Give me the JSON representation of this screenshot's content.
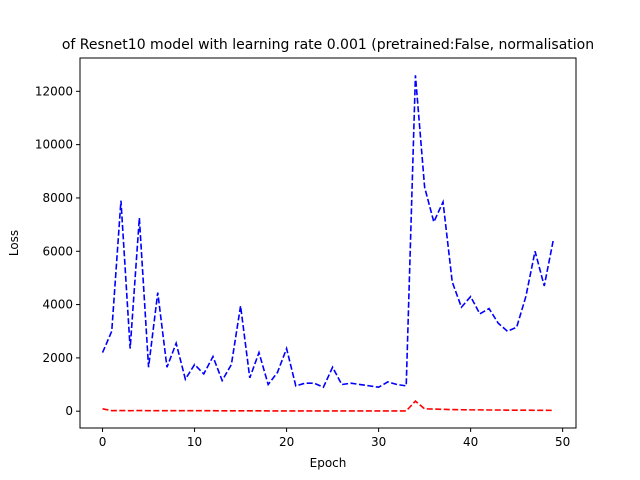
{
  "chart_data": {
    "type": "line",
    "title": "of  Resnet10 model with learning rate 0.001 (pretrained:False, normalisation",
    "xlabel": "Epoch",
    "ylabel": "Loss",
    "xlim": [
      -2.45,
      51.45
    ],
    "ylim": [
      -630,
      13250
    ],
    "xticks": [
      0,
      10,
      20,
      30,
      40,
      50
    ],
    "yticks": [
      0,
      2000,
      4000,
      6000,
      8000,
      10000,
      12000
    ],
    "grid": false,
    "legend": "none",
    "x": [
      0,
      1,
      2,
      3,
      4,
      5,
      6,
      7,
      8,
      9,
      10,
      11,
      12,
      13,
      14,
      15,
      16,
      17,
      18,
      19,
      20,
      21,
      22,
      23,
      24,
      25,
      26,
      27,
      28,
      29,
      30,
      31,
      32,
      33,
      34,
      35,
      36,
      37,
      38,
      39,
      40,
      41,
      42,
      43,
      44,
      45,
      46,
      47,
      48,
      49
    ],
    "series": [
      {
        "color": "#0000ff",
        "linestyle": "dashed",
        "values": [
          2200,
          3000,
          7900,
          2350,
          7250,
          1650,
          4450,
          1650,
          2550,
          1200,
          1750,
          1400,
          2050,
          1150,
          1750,
          3950,
          1250,
          2200,
          1000,
          1450,
          2350,
          950,
          1050,
          1050,
          900,
          1650,
          1000,
          1050,
          1000,
          950,
          900,
          1100,
          1000,
          950,
          12600,
          8400,
          7100,
          7850,
          4850,
          3900,
          4300,
          3650,
          3850,
          3300,
          3000,
          3150,
          4300,
          6000,
          4700,
          6450
        ]
      },
      {
        "color": "#ff0000",
        "linestyle": "dashed",
        "values": [
          90,
          20,
          25,
          20,
          25,
          20,
          20,
          20,
          20,
          18,
          18,
          18,
          18,
          15,
          15,
          15,
          15,
          15,
          12,
          12,
          10,
          10,
          10,
          10,
          10,
          10,
          10,
          10,
          10,
          10,
          10,
          10,
          10,
          10,
          380,
          90,
          80,
          70,
          60,
          55,
          50,
          50,
          45,
          45,
          40,
          40,
          40,
          35,
          35,
          30
        ]
      }
    ]
  }
}
